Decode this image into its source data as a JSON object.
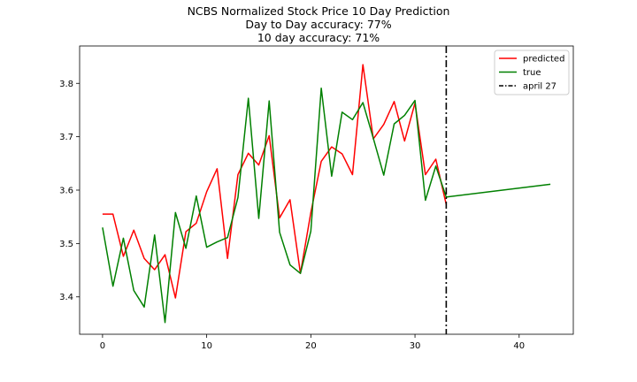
{
  "chart_data": {
    "type": "line",
    "title": "NCBS Normalized Stock Price 10 Day Prediction",
    "subtitle_lines": [
      "Day to Day accuracy: 77%",
      "10 day accuracy: 71%"
    ],
    "xlabel": "",
    "ylabel": "",
    "xlim": [
      -2.2,
      45.2
    ],
    "ylim": [
      3.33,
      3.87
    ],
    "xticks": [
      0,
      10,
      20,
      30,
      40
    ],
    "yticks": [
      3.4,
      3.5,
      3.6,
      3.7,
      3.8
    ],
    "grid": false,
    "legend_position": "top-right",
    "series": [
      {
        "name": "predicted",
        "color": "#ff0000",
        "x": [
          0,
          1,
          2,
          3,
          4,
          5,
          6,
          7,
          8,
          9,
          10,
          11,
          12,
          13,
          14,
          15,
          16,
          17,
          18,
          19,
          20,
          21,
          22,
          23,
          24,
          25,
          26,
          27,
          28,
          29,
          30,
          31,
          32,
          33
        ],
        "y": [
          3.555,
          3.555,
          3.476,
          3.525,
          3.472,
          3.451,
          3.479,
          3.398,
          3.522,
          3.538,
          3.597,
          3.64,
          3.472,
          3.629,
          3.669,
          3.647,
          3.702,
          3.548,
          3.582,
          3.444,
          3.558,
          3.654,
          3.681,
          3.668,
          3.629,
          3.835,
          3.696,
          3.723,
          3.766,
          3.692,
          3.763,
          3.629,
          3.658,
          3.573
        ]
      },
      {
        "name": "true",
        "color": "#008000",
        "x": [
          0,
          1,
          2,
          3,
          4,
          5,
          6,
          7,
          8,
          9,
          10,
          11,
          12,
          13,
          14,
          15,
          16,
          17,
          18,
          19,
          20,
          21,
          22,
          23,
          24,
          25,
          26,
          27,
          28,
          29,
          30,
          31,
          32,
          33,
          43
        ],
        "y": [
          3.53,
          3.42,
          3.51,
          3.412,
          3.381,
          3.516,
          3.352,
          3.558,
          3.491,
          3.589,
          3.493,
          3.503,
          3.511,
          3.586,
          3.772,
          3.547,
          3.767,
          3.521,
          3.46,
          3.444,
          3.523,
          3.791,
          3.626,
          3.746,
          3.732,
          3.764,
          3.697,
          3.628,
          3.724,
          3.74,
          3.768,
          3.581,
          3.645,
          3.587,
          3.611
        ]
      }
    ],
    "vline": {
      "name": "april 27",
      "x": 33,
      "color": "#000000",
      "style": "dashdot"
    }
  }
}
